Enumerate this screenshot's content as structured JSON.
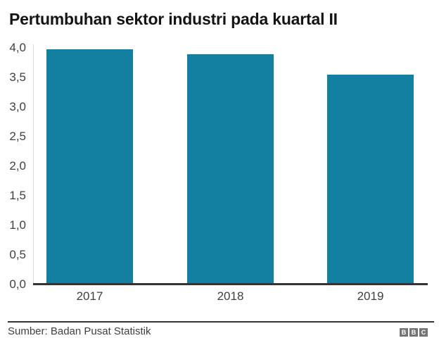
{
  "header": {
    "title": "Pertumbuhan sektor industri pada kuartal II"
  },
  "chart_data": {
    "type": "bar",
    "title": "Pertumbuhan sektor industri pada kuartal II",
    "categories": [
      "2017",
      "2018",
      "2019"
    ],
    "values": [
      3.97,
      3.88,
      3.54
    ],
    "xlabel": "",
    "ylabel": "",
    "ylim": [
      0,
      4
    ],
    "ytick_step": 0.5,
    "ytick_labels_top_to_bottom": [
      "4,0",
      "3,5",
      "3,0",
      "2,5",
      "2,0",
      "1,5",
      "1,0",
      "0,5",
      "0,0"
    ],
    "decimal_style": "comma",
    "grid": false,
    "legend": null,
    "bar_color": "#1380A1",
    "axis_line_color": "#333333",
    "tick_label_color": "#404040"
  },
  "footer": {
    "source": "Sumber: Badan Pusat Statistik",
    "logo_letters": [
      "B",
      "B",
      "C"
    ],
    "logo_color": "#757575"
  }
}
